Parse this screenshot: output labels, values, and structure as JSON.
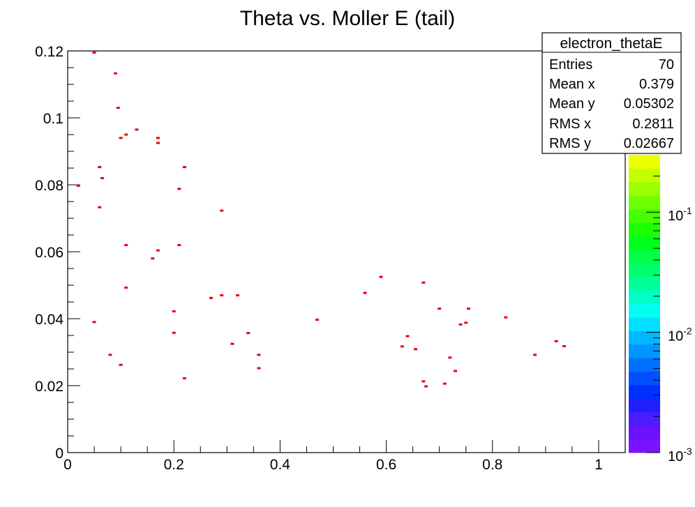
{
  "chart_data": {
    "type": "scatter",
    "title": "Theta vs. Moller E (tail)",
    "xlabel": "",
    "ylabel": "",
    "xlim": [
      0,
      1.05
    ],
    "ylim": [
      0,
      0.12
    ],
    "x_ticks": [
      0,
      0.2,
      0.4,
      0.6,
      0.8,
      1
    ],
    "x_tick_labels": [
      "0",
      "0.2",
      "0.4",
      "0.6",
      "0.8",
      "1"
    ],
    "y_ticks": [
      0,
      0.02,
      0.04,
      0.06,
      0.08,
      0.1,
      0.12
    ],
    "y_tick_labels": [
      "0",
      "0.02",
      "0.04",
      "0.06",
      "0.08",
      "0.1",
      "0.12"
    ],
    "marker_color": "#e8000b",
    "series": [
      {
        "name": "electron_thetaE",
        "points": [
          [
            0.05,
            0.1195
          ],
          [
            0.09,
            0.1133
          ],
          [
            0.095,
            0.103
          ],
          [
            0.13,
            0.0965
          ],
          [
            0.11,
            0.095
          ],
          [
            0.1,
            0.094
          ],
          [
            0.17,
            0.094
          ],
          [
            0.17,
            0.0925
          ],
          [
            0.06,
            0.0853
          ],
          [
            0.22,
            0.0853
          ],
          [
            0.065,
            0.082
          ],
          [
            0.02,
            0.0797
          ],
          [
            0.21,
            0.0788
          ],
          [
            0.06,
            0.0733
          ],
          [
            0.29,
            0.0723
          ],
          [
            0.11,
            0.062
          ],
          [
            0.21,
            0.062
          ],
          [
            0.17,
            0.0604
          ],
          [
            0.16,
            0.058
          ],
          [
            0.59,
            0.0525
          ],
          [
            0.67,
            0.0508
          ],
          [
            0.11,
            0.0493
          ],
          [
            0.56,
            0.0477
          ],
          [
            0.29,
            0.047
          ],
          [
            0.32,
            0.047
          ],
          [
            0.27,
            0.0462
          ],
          [
            0.7,
            0.043
          ],
          [
            0.755,
            0.043
          ],
          [
            0.2,
            0.0422
          ],
          [
            0.825,
            0.0404
          ],
          [
            0.47,
            0.0397
          ],
          [
            0.05,
            0.039
          ],
          [
            0.75,
            0.0388
          ],
          [
            0.74,
            0.0383
          ],
          [
            0.2,
            0.0358
          ],
          [
            0.34,
            0.0357
          ],
          [
            0.64,
            0.0348
          ],
          [
            0.92,
            0.0333
          ],
          [
            0.31,
            0.0325
          ],
          [
            0.935,
            0.0318
          ],
          [
            0.63,
            0.0317
          ],
          [
            0.655,
            0.0309
          ],
          [
            0.36,
            0.0292
          ],
          [
            0.08,
            0.0292
          ],
          [
            0.88,
            0.0292
          ],
          [
            0.72,
            0.0284
          ],
          [
            0.1,
            0.0262
          ],
          [
            0.36,
            0.0252
          ],
          [
            0.73,
            0.0244
          ],
          [
            0.22,
            0.0222
          ],
          [
            0.67,
            0.0213
          ],
          [
            0.71,
            0.0206
          ],
          [
            0.675,
            0.0198
          ]
        ]
      }
    ],
    "color_scale": {
      "type": "log",
      "min": 0.001,
      "max": 0.3,
      "labels": [
        {
          "base": "10",
          "exp": "-3",
          "value": 0.001
        },
        {
          "base": "10",
          "exp": "-2",
          "value": 0.01
        },
        {
          "base": "10",
          "exp": "-1",
          "value": 0.1
        }
      ],
      "colors": [
        "#7b12ff",
        "#6a12ff",
        "#4a1cff",
        "#2020ff",
        "#0030ff",
        "#0050ff",
        "#0070ff",
        "#0095ff",
        "#00b8ff",
        "#00dfff",
        "#00fff0",
        "#00ffc4",
        "#00ff9a",
        "#00ff70",
        "#00ff46",
        "#00ff1c",
        "#1cff00",
        "#46ff00",
        "#70ff00",
        "#9aff00",
        "#c4ff00",
        "#eeff00"
      ]
    },
    "stats_box": {
      "title": "electron_thetaE",
      "rows": [
        {
          "label": "Entries",
          "value": "70"
        },
        {
          "label": "Mean x",
          "value": "0.379"
        },
        {
          "label": "Mean y",
          "value": "0.05302"
        },
        {
          "label": "RMS x",
          "value": "0.2811"
        },
        {
          "label": "RMS y",
          "value": "0.02667"
        }
      ]
    }
  }
}
